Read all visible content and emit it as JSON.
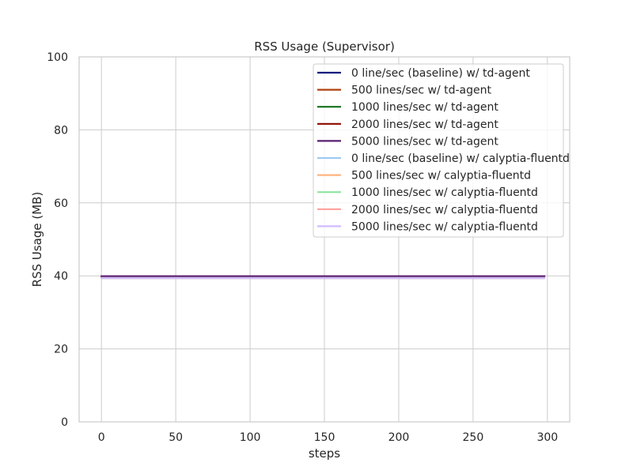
{
  "chart_data": {
    "type": "line",
    "title": "RSS Usage (Supervisor)",
    "xlabel": "steps",
    "ylabel": "RSS Usage (MB)",
    "xlim": [
      -15,
      315
    ],
    "ylim": [
      0,
      100
    ],
    "xticks": [
      0,
      50,
      100,
      150,
      200,
      250,
      300
    ],
    "yticks": [
      0,
      20,
      40,
      60,
      80,
      100
    ],
    "grid": true,
    "legend_position": "top-right",
    "x": [
      0,
      298
    ],
    "series": [
      {
        "name": "0 line/sec (baseline) w/ td-agent",
        "color": "#001c7f",
        "values": [
          39.9,
          39.9
        ]
      },
      {
        "name": "500 lines/sec w/ td-agent",
        "color": "#b1400d",
        "values": [
          39.9,
          39.9
        ]
      },
      {
        "name": "1000 lines/sec w/ td-agent",
        "color": "#12711c",
        "values": [
          39.9,
          39.9
        ]
      },
      {
        "name": "2000 lines/sec w/ td-agent",
        "color": "#8c0800",
        "values": [
          39.9,
          39.9
        ]
      },
      {
        "name": "5000 lines/sec w/ td-agent",
        "color": "#591e71",
        "values": [
          39.9,
          39.9
        ]
      },
      {
        "name": "0 line/sec (baseline) w/ calyptia-fluentd",
        "color": "#a1c9f4",
        "values": [
          39.4,
          39.4
        ]
      },
      {
        "name": "500 lines/sec w/ calyptia-fluentd",
        "color": "#ffb482",
        "values": [
          39.4,
          39.4
        ]
      },
      {
        "name": "1000 lines/sec w/ calyptia-fluentd",
        "color": "#8de5a1",
        "values": [
          39.4,
          39.4
        ]
      },
      {
        "name": "2000 lines/sec w/ calyptia-fluentd",
        "color": "#ff9f9b",
        "values": [
          39.4,
          39.4
        ]
      },
      {
        "name": "5000 lines/sec w/ calyptia-fluentd",
        "color": "#d0bbff",
        "values": [
          39.4,
          39.4
        ]
      }
    ]
  }
}
